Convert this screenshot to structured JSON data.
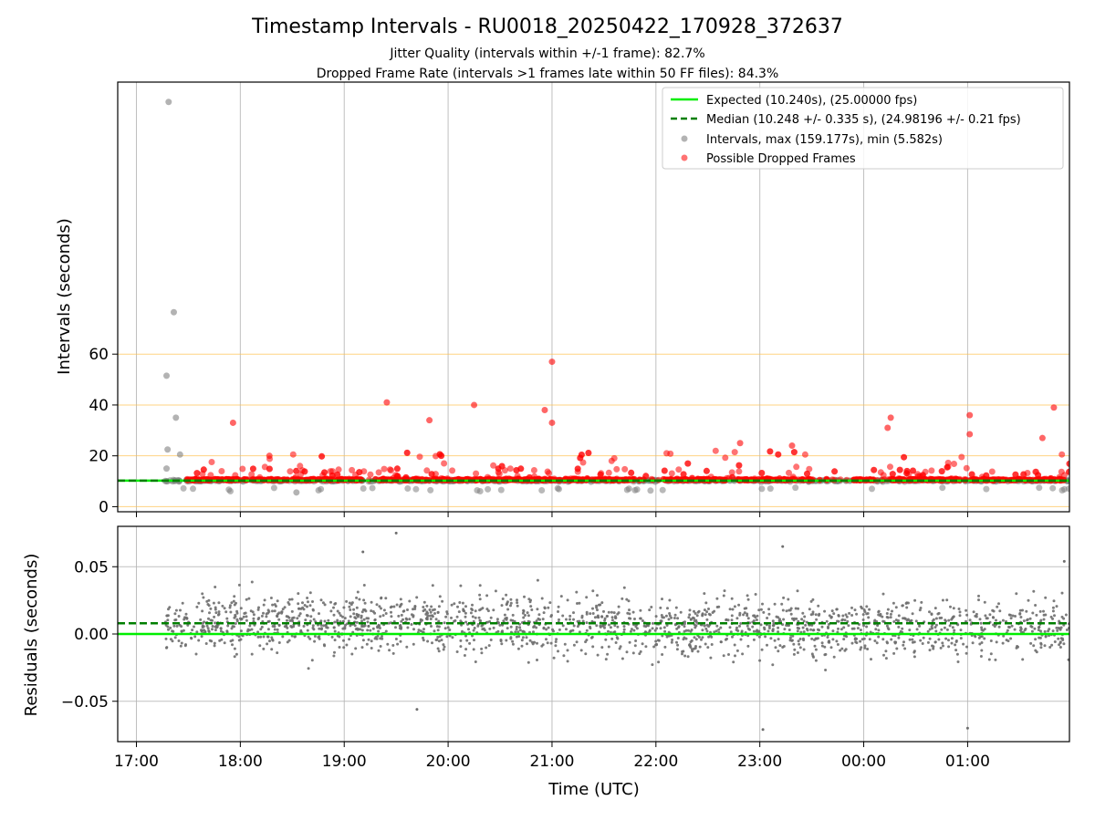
{
  "chart_data": {
    "title": "Timestamp Intervals - RU0018_20250422_170928_372637",
    "subtitle_lines": [
      "Jitter Quality (intervals within +/-1 frame): 82.7%",
      "Dropped Frame Rate (intervals >1 frames late within 50 FF files): 84.3%"
    ],
    "xlabel": "Time (UTC)",
    "x_ticks": [
      "17:00",
      "18:00",
      "19:00",
      "20:00",
      "21:00",
      "22:00",
      "23:00",
      "00:00",
      "01:00"
    ],
    "x_range_hours": [
      16.82,
      25.98
    ],
    "panels": [
      {
        "type": "scatter",
        "ylabel": "Intervals (seconds)",
        "y_ticks": [
          0,
          20,
          40,
          60
        ],
        "ylim": [
          -2,
          167
        ],
        "reference_lines_y": [
          0,
          20,
          40,
          60
        ],
        "reference_line_color": "#ffc04d",
        "expected_y": 10.24,
        "median_y": 10.248,
        "legend_position": "top-right",
        "legend": [
          {
            "kind": "solid-line",
            "color": "#00ee00",
            "label": "Expected (10.240s), (25.00000 fps)"
          },
          {
            "kind": "dashed-line",
            "color": "#007f00",
            "label": "Median (10.248 +/- 0.335 s), (24.98196 +/- 0.21 fps)"
          },
          {
            "kind": "gray-marker",
            "color": "#808080",
            "label": "Intervals, max (159.177s), min (5.582s)"
          },
          {
            "kind": "red-marker",
            "color": "#ff0000",
            "label": "Possible Dropped Frames"
          }
        ],
        "notable_points": [
          {
            "t": 17.31,
            "y": 159.2,
            "series": "gray"
          },
          {
            "t": 17.36,
            "y": 76.5,
            "series": "gray"
          },
          {
            "t": 17.29,
            "y": 51.5,
            "series": "gray"
          },
          {
            "t": 17.38,
            "y": 35.0,
            "series": "gray"
          },
          {
            "t": 17.3,
            "y": 22.5,
            "series": "gray"
          },
          {
            "t": 17.29,
            "y": 15.0,
            "series": "gray"
          },
          {
            "t": 17.42,
            "y": 20.5,
            "series": "gray"
          },
          {
            "t": 18.54,
            "y": 5.6,
            "series": "gray"
          },
          {
            "t": 17.93,
            "y": 33.0,
            "series": "red"
          },
          {
            "t": 18.28,
            "y": 20.0,
            "series": "red"
          },
          {
            "t": 19.41,
            "y": 41.0,
            "series": "red"
          },
          {
            "t": 19.82,
            "y": 34.0,
            "series": "red"
          },
          {
            "t": 20.25,
            "y": 40.0,
            "series": "red"
          },
          {
            "t": 20.93,
            "y": 38.0,
            "series": "red"
          },
          {
            "t": 21.0,
            "y": 57.0,
            "series": "red"
          },
          {
            "t": 21.0,
            "y": 33.0,
            "series": "red"
          },
          {
            "t": 22.81,
            "y": 25.0,
            "series": "red"
          },
          {
            "t": 23.31,
            "y": 24.0,
            "series": "red"
          },
          {
            "t": 24.23,
            "y": 31.0,
            "series": "red"
          },
          {
            "t": 24.26,
            "y": 35.0,
            "series": "red"
          },
          {
            "t": 25.02,
            "y": 36.0,
            "series": "red"
          },
          {
            "t": 25.02,
            "y": 28.5,
            "series": "red"
          },
          {
            "t": 25.83,
            "y": 39.0,
            "series": "red"
          },
          {
            "t": 25.72,
            "y": 27.0,
            "series": "red"
          }
        ]
      },
      {
        "type": "scatter",
        "ylabel": "Residuals (seconds)",
        "y_ticks": [
          0.05,
          0.0,
          -0.05
        ],
        "y_tick_labels": [
          "0.05",
          "0.00",
          "−0.05"
        ],
        "ylim": [
          -0.08,
          0.08
        ],
        "expected_y": 0.0,
        "median_y": 0.008,
        "residual_spread_sd": 0.015,
        "outliers": [
          {
            "t": 19.5,
            "y": 0.075
          },
          {
            "t": 23.22,
            "y": 0.065
          },
          {
            "t": 23.03,
            "y": -0.071
          },
          {
            "t": 25.0,
            "y": -0.07
          },
          {
            "t": 19.18,
            "y": 0.061
          },
          {
            "t": 19.7,
            "y": -0.056
          },
          {
            "t": 25.93,
            "y": 0.054
          }
        ]
      }
    ],
    "colors": {
      "gray_marker": "#808080",
      "red_marker": "#ff0000",
      "expected_line": "#00ee00",
      "median_line": "#007f00",
      "residual_point": "#6e6e6e",
      "grid": "#b0b0b0"
    }
  }
}
